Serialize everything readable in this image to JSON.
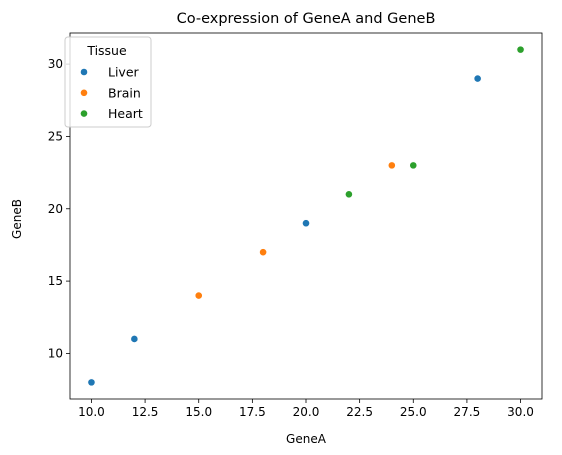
{
  "chart_data": {
    "type": "scatter",
    "title": "Co-expression of GeneA and GeneB",
    "xlabel": "GeneA",
    "ylabel": "GeneB",
    "xlim": [
      9.0,
      31.0
    ],
    "ylim": [
      6.85,
      32.15
    ],
    "xticks": [
      "10.0",
      "12.5",
      "15.0",
      "17.5",
      "20.0",
      "22.5",
      "25.0",
      "27.5",
      "30.0"
    ],
    "yticks": [
      "10",
      "15",
      "20",
      "25",
      "30"
    ],
    "grid": false,
    "legend": {
      "title": "Tissue",
      "placement": "top-left"
    },
    "series": [
      {
        "name": "Liver",
        "color": "#1f77b4",
        "x": [
          10,
          12,
          20,
          28
        ],
        "y": [
          8,
          11,
          19,
          29
        ]
      },
      {
        "name": "Brain",
        "color": "#ff7f0e",
        "x": [
          15,
          18,
          24
        ],
        "y": [
          14,
          17,
          23
        ]
      },
      {
        "name": "Heart",
        "color": "#2ca02c",
        "x": [
          22,
          25,
          30
        ],
        "y": [
          21,
          23,
          31
        ]
      }
    ]
  }
}
